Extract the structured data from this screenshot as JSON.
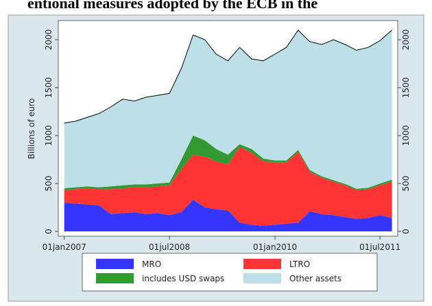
{
  "chart_data": {
    "type": "stacked-area",
    "title": "entional measures adopted by the ECB in the",
    "y_label": "Billions of euro",
    "x": [
      "2007-01-01",
      "2007-03-01",
      "2007-05-01",
      "2007-07-01",
      "2007-09-01",
      "2007-11-01",
      "2008-01-01",
      "2008-03-01",
      "2008-05-01",
      "2008-07-01",
      "2008-09-01",
      "2008-11-01",
      "2009-01-01",
      "2009-03-01",
      "2009-05-01",
      "2009-07-01",
      "2009-09-01",
      "2009-11-01",
      "2010-01-01",
      "2010-03-01",
      "2010-05-01",
      "2010-07-01",
      "2010-09-01",
      "2010-11-01",
      "2011-01-01",
      "2011-03-01",
      "2011-05-01",
      "2011-07-01",
      "2011-09-01"
    ],
    "series": [
      {
        "name": "MRO",
        "color": "#3535ff",
        "values": [
          300,
          290,
          280,
          270,
          180,
          190,
          200,
          180,
          190,
          170,
          200,
          330,
          250,
          230,
          220,
          90,
          70,
          60,
          70,
          80,
          90,
          210,
          180,
          170,
          150,
          130,
          140,
          170,
          140
        ]
      },
      {
        "name": "LTRO",
        "color": "#ff3535",
        "values": [
          130,
          150,
          170,
          170,
          260,
          260,
          260,
          280,
          280,
          310,
          450,
          470,
          530,
          500,
          480,
          790,
          750,
          670,
          650,
          640,
          740,
          410,
          380,
          350,
          330,
          300,
          300,
          310,
          380
        ]
      },
      {
        "name": "includes USD swaps",
        "color": "#339933",
        "values": [
          20,
          20,
          20,
          20,
          30,
          30,
          30,
          30,
          30,
          30,
          100,
          200,
          170,
          130,
          100,
          30,
          40,
          30,
          20,
          20,
          20,
          20,
          15,
          15,
          15,
          15,
          15,
          20,
          20
        ]
      },
      {
        "name": "Other assets",
        "color": "#bddfe8",
        "values": [
          680,
          690,
          720,
          770,
          830,
          900,
          870,
          910,
          920,
          930,
          950,
          1050,
          1050,
          990,
          980,
          1010,
          940,
          1020,
          1110,
          1180,
          1250,
          1340,
          1375,
          1465,
          1455,
          1445,
          1465,
          1490,
          1560
        ]
      }
    ],
    "xlim": [
      "2006-12-01",
      "2011-10-01"
    ],
    "xticks": [
      {
        "value": "2007-01-01",
        "label": "01jan2007"
      },
      {
        "value": "2008-07-01",
        "label": "01jul2008"
      },
      {
        "value": "2010-01-01",
        "label": "01jan2010"
      },
      {
        "value": "2011-07-01",
        "label": "01jul2011"
      }
    ],
    "ylim": [
      -50,
      2200
    ],
    "yticks": [
      0,
      500,
      1000,
      1500,
      2000
    ],
    "y2lim": [
      -50,
      2200
    ],
    "y2ticks": [
      0,
      500,
      1000,
      1500,
      2000
    ],
    "top_line_color": "#000000",
    "legend_position": "bottom"
  }
}
